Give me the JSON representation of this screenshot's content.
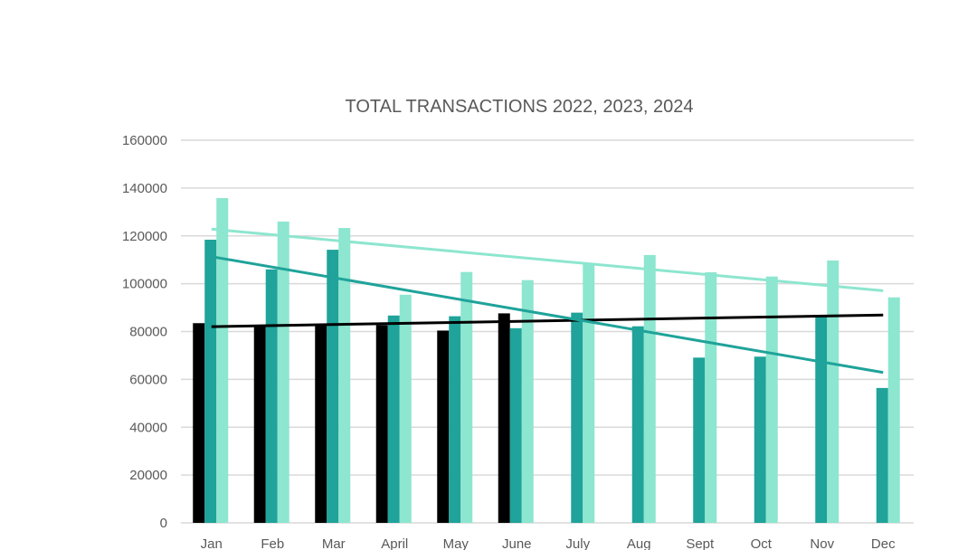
{
  "chart_data": {
    "type": "bar",
    "title": "TOTAL TRANSACTIONS 2022, 2023, 2024",
    "xlabel": "",
    "ylabel": "",
    "ylim": [
      0,
      160000
    ],
    "yticks": [
      "0",
      "20000",
      "40000",
      "60000",
      "80000",
      "100000",
      "120000",
      "140000",
      "160000"
    ],
    "grid": true,
    "categories": [
      "Jan",
      "Feb",
      "Mar",
      "April",
      "May",
      "June",
      "July",
      "Aug",
      "Sept",
      "Oct",
      "Nov",
      "Dec"
    ],
    "series": [
      {
        "color": "#000000",
        "values": [
          83500,
          82100,
          82600,
          82700,
          80400,
          87600,
          null,
          null,
          null,
          null,
          null,
          null
        ],
        "trendline": "linear"
      },
      {
        "color": "#1fa39a",
        "values": [
          118400,
          106000,
          114200,
          86700,
          86400,
          81400,
          87900,
          82200,
          69100,
          69500,
          87000,
          56400
        ],
        "trendline": "linear"
      },
      {
        "color": "#8de6cf",
        "values": [
          135800,
          126000,
          123300,
          95400,
          104900,
          101500,
          108500,
          112000,
          104800,
          103000,
          109700,
          94300
        ],
        "trendline": "linear"
      }
    ]
  }
}
